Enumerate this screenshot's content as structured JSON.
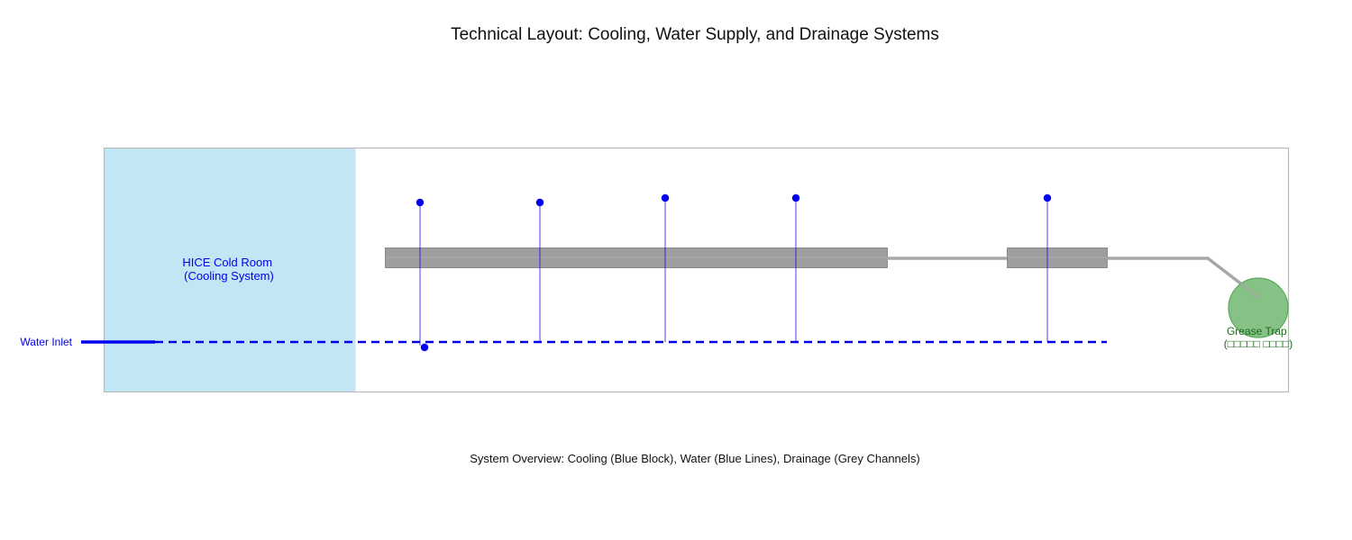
{
  "title": "Technical Layout: Cooling, Water Supply, and Drainage Systems",
  "caption": "System Overview: Cooling (Blue Block), Water (Blue Lines), Drainage (Grey Channels)",
  "cold_room": {
    "line1": "HICE Cold Room",
    "line2": "(Cooling System)"
  },
  "water_inlet": {
    "label": "Water Inlet"
  },
  "grease_trap": {
    "line1": "Grease Trap",
    "line2": "(□□□□□ □□□□)"
  },
  "colors": {
    "cooling_fill": "#c3e6f5",
    "cooling_stroke": "#8ec8e2",
    "water": "#0000ee",
    "drain_fill": "#9e9e9e",
    "drain_stroke": "#8a8a8a",
    "drain_line": "#a8a8a8",
    "trap_fill": "#7fbf7f",
    "trap_stroke": "#5aaa5a",
    "trap_text": "#1a6b1a",
    "frame": "#b8b8b8"
  }
}
